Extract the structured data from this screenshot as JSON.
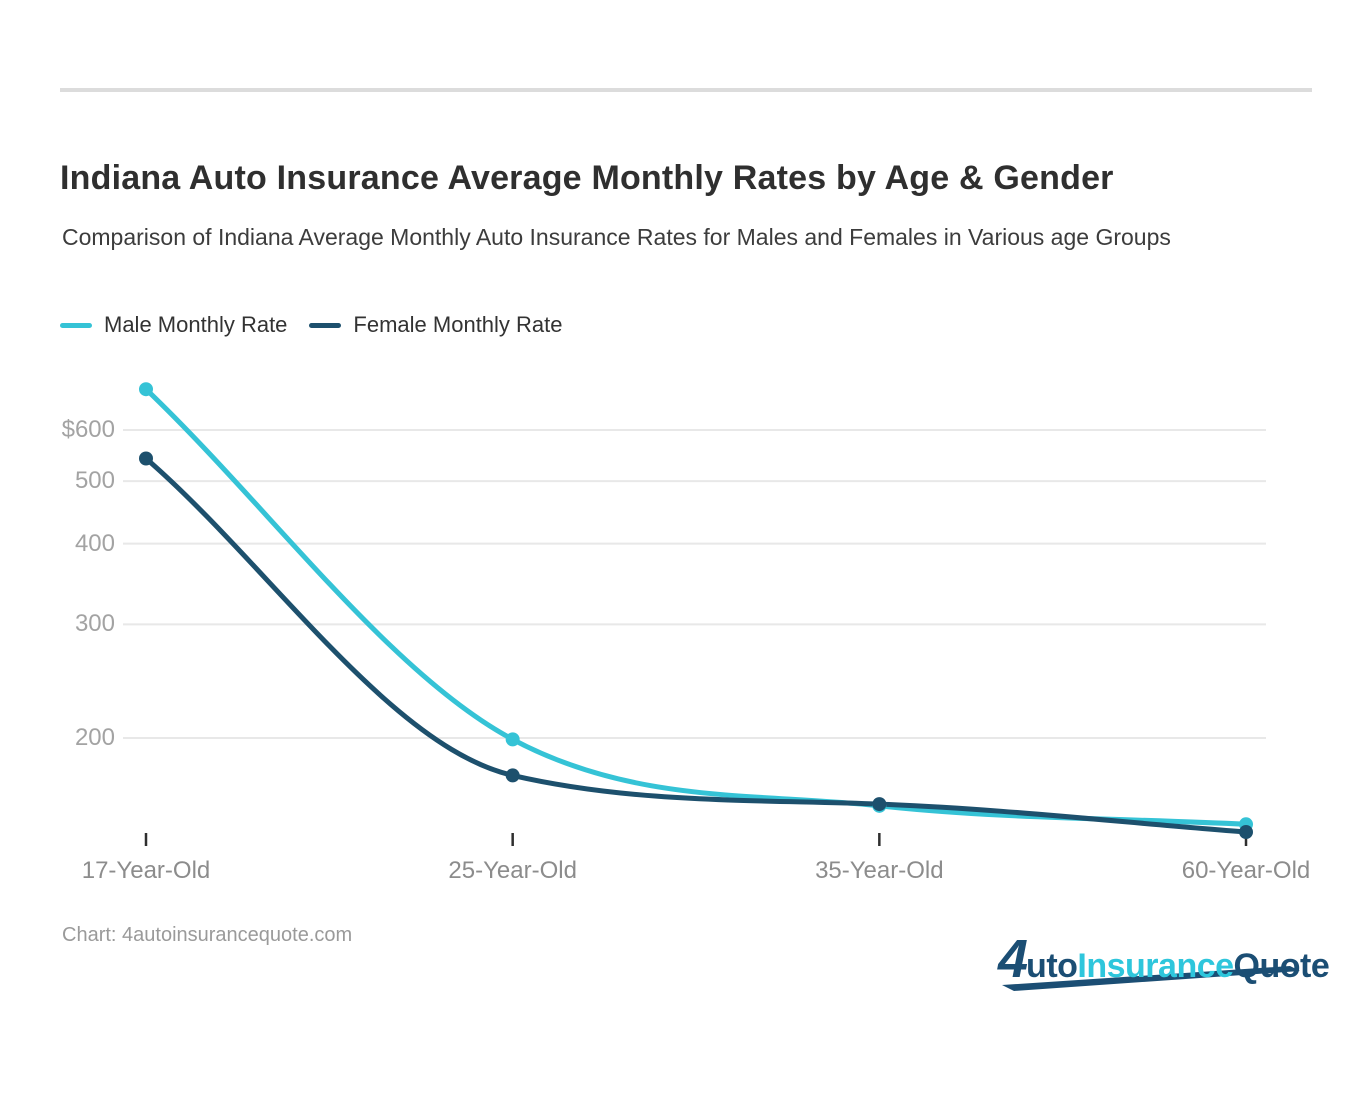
{
  "page": {
    "title": "Indiana Auto Insurance Average Monthly Rates by Age & Gender",
    "subtitle": "Comparison of Indiana Average Monthly Auto Insurance Rates for Males and Females in Various age Groups",
    "source_note": "Chart: 4autoinsurancequote.com"
  },
  "legend": [
    {
      "label": "Male Monthly Rate",
      "color": "#35c3d6"
    },
    {
      "label": "Female Monthly Rate",
      "color": "#1d506d"
    }
  ],
  "chart_data": {
    "type": "line",
    "title": "Indiana Auto Insurance Average Monthly Rates by Age & Gender",
    "subtitle": "Comparison of Indiana Average Monthly Auto Insurance Rates for Males and Females in Various age Groups",
    "categories": [
      "17-Year-Old",
      "25-Year-Old",
      "35-Year-Old",
      "60-Year-Old"
    ],
    "series": [
      {
        "name": "Male Monthly Rate",
        "color": "#35c3d6",
        "values": [
          694,
          199,
          157,
          147
        ]
      },
      {
        "name": "Female Monthly Rate",
        "color": "#1d506d",
        "values": [
          542,
          175,
          158,
          143
        ]
      }
    ],
    "y_scale": "log",
    "y_ticks": [
      {
        "label": "$600",
        "value": 600
      },
      {
        "label": "500",
        "value": 500
      },
      {
        "label": "400",
        "value": 400
      },
      {
        "label": "300",
        "value": 300
      },
      {
        "label": "200",
        "value": 200
      }
    ],
    "ylim": [
      135,
      720
    ],
    "grid": true,
    "legend_position": "top-left",
    "gridline_color": "#e8e8e8",
    "axis_tick_color": "#2f2f2f"
  },
  "logo": {
    "char_4": "4",
    "word_uto": "uto",
    "word_insurance": "Insurance",
    "word_quote": "Quote",
    "navy": "#1b4e74",
    "cyan": "#2ec6dc"
  }
}
